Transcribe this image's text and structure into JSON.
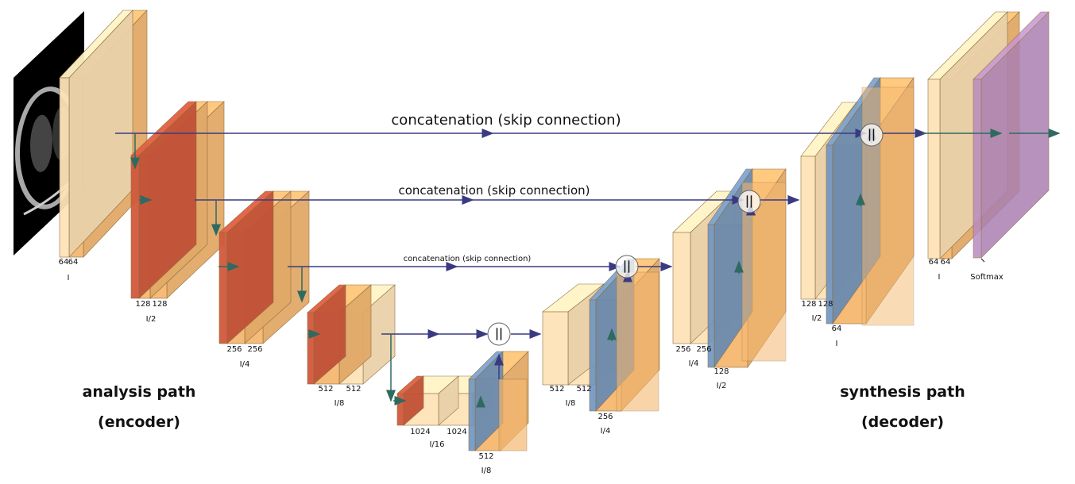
{
  "skip_labels": [
    "concatenation (skip connection)",
    "concatenation (skip connection)",
    "concatenation (skip connection)"
  ],
  "analysis": {
    "line1": "analysis path",
    "line2": "(encoder)"
  },
  "synthesis": {
    "line1": "synthesis path",
    "line2": "(decoder)"
  },
  "blocks": {
    "e1": {
      "ch": [
        "64",
        "64"
      ],
      "res": "I"
    },
    "e2": {
      "ch": [
        "128",
        "128"
      ],
      "res": "I/2"
    },
    "e3": {
      "ch": [
        "256",
        "256"
      ],
      "res": "I/4"
    },
    "e4": {
      "ch": [
        "512",
        "512"
      ],
      "res": "I/8"
    },
    "b": {
      "ch": [
        "1024",
        "1024"
      ],
      "res": "I/16"
    },
    "up4": {
      "ch": "512",
      "res": "I/8"
    },
    "d4": {
      "ch": [
        "512",
        "512"
      ],
      "res": "I/8"
    },
    "up3": {
      "ch": "256",
      "res": "I/4"
    },
    "d3": {
      "ch": [
        "256",
        "256"
      ],
      "res": "I/4"
    },
    "up2": {
      "ch": "128",
      "res": "I/2"
    },
    "d2": {
      "ch": [
        "128",
        "128"
      ],
      "res": "I/2"
    },
    "up1": {
      "ch": "64",
      "res": "I"
    },
    "d1": {
      "ch": [
        "64",
        "64"
      ],
      "res": "I"
    },
    "out": {
      "label": "Softmax"
    }
  },
  "colors": {
    "orange": "#f5b870",
    "light": "#fde3b8",
    "red": "#d2583c",
    "blue": "#6e95c2",
    "purple": "#b98bc2",
    "arrow": "#3a3a82",
    "green_arrow": "#2f6a60"
  }
}
